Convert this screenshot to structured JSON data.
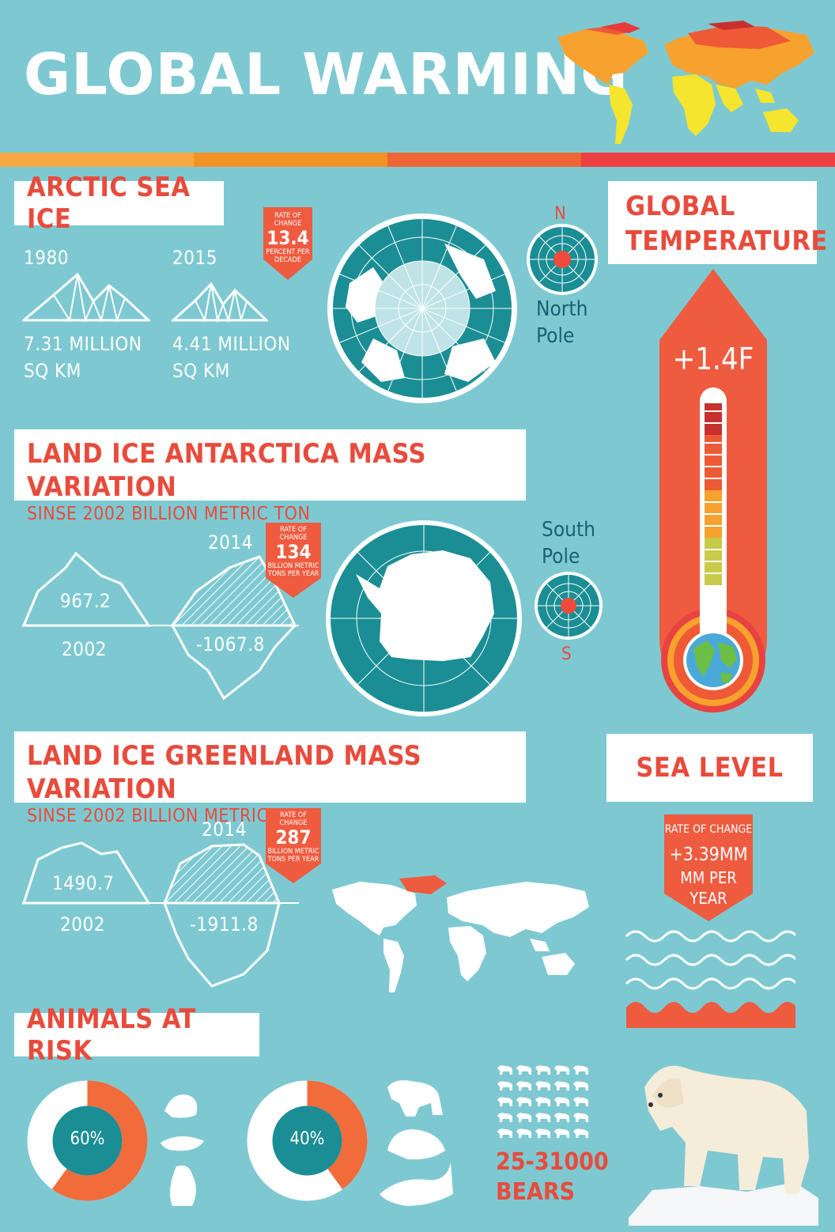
{
  "title": "GLOBAL WARMING",
  "arctic": {
    "heading": "ARCTIC SEA ICE",
    "year_a": "1980",
    "year_b": "2015",
    "value_a_line1": "7.31 MILLION",
    "value_a_line2": "SQ KM",
    "value_b_line1": "4.41 MILLION",
    "value_b_line2": "SQ KM",
    "rate_label": "RATE OF CHANGE",
    "rate_value": "13.4",
    "rate_unit": "PERCENT PER DECADE",
    "compass_letter": "N",
    "pole_line1": "North",
    "pole_line2": "Pole"
  },
  "antarctica": {
    "heading": "LAND ICE ANTARCTICA MASS VARIATION",
    "subheading": "SINSE 2002 BILLION METRIC TON",
    "year_start": "2002",
    "year_end": "2014",
    "value_start": "967.2",
    "value_end": "-1067.8",
    "rate_label": "RATE OF CHANGE",
    "rate_value": "134",
    "rate_unit": "BILLION METRIC TONS PER YEAR",
    "pole_line1": "South",
    "pole_line2": "Pole",
    "compass_letter": "S"
  },
  "greenland": {
    "heading": "LAND ICE GREENLAND MASS VARIATION",
    "subheading": "SINSE 2002 BILLION METRIC TON",
    "year_start": "2002",
    "year_end": "2014",
    "value_start": "1490.7",
    "value_end": "-1911.8",
    "rate_label": "RATE OF CHANGE",
    "rate_value": "287",
    "rate_unit": "BILLION METRIC TONS PER YEAR"
  },
  "temperature": {
    "heading_line1": "GLOBAL",
    "heading_line2": "TEMPERATURE",
    "value": "+1.4F"
  },
  "sea_level": {
    "heading": "SEA LEVEL",
    "rate_label": "RATE OF CHANGE",
    "value": "+3.39MM",
    "unit_line1": "MM PER",
    "unit_line2": "YEAR"
  },
  "animals": {
    "heading": "ANIMALS AT RISK",
    "donut_a": {
      "label": "60%",
      "fraction": 0.6
    },
    "donut_b": {
      "label": "40%",
      "fraction": 0.4
    },
    "bears_line1": "25-31000",
    "bears_line2": "BEARS"
  },
  "colors": {
    "background": "#7ec9d1",
    "accent_red": "#e84b3c",
    "teal": "#1a8e94",
    "orange": "#f26b3a",
    "stripe": [
      "#f7a941",
      "#f29224",
      "#ef6535",
      "#ee3f45"
    ]
  }
}
